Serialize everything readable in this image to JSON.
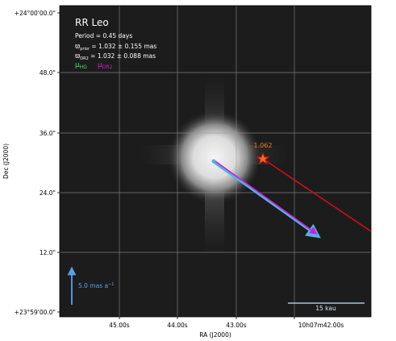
{
  "object": {
    "name": "RR Leo",
    "period_line": "Period =    0.45 days",
    "plx_prior_sym": "ϖ",
    "plx_prior_sub": "prior",
    "plx_prior_rest": " = 1.032 ± 0.155 mas",
    "plx_dr2_sym": "ϖ",
    "plx_dr2_sub": "DR2",
    "plx_dr2_rest": " = 1.032 ± 0.088 mas"
  },
  "legend": {
    "hg_sym": "μ",
    "hg_sub": "HG",
    "dr2_sym": "μ",
    "dr2_sub": "DR2"
  },
  "axes": {
    "xlabel": "RA (J2000)",
    "ylabel": "Dec (J2000)",
    "xticks": [
      "45.00s",
      "44.00s",
      "43.00s",
      "10h07m42.00s"
    ],
    "yticks": [
      "+24°00'00.0\"",
      "48.0\"",
      "36.0\"",
      "24.0\"",
      "12.0\"",
      "+23°59'00.0\""
    ]
  },
  "annotations": {
    "ruwe_label": "1.062",
    "scale_arrow_label": "5.0 mas a",
    "scale_arrow_exp": "−1",
    "scalebar_label": "15 kau"
  },
  "colors": {
    "background_image": "#1c1c1c",
    "grid": "#9a9a9a",
    "text": "#ffffff",
    "hg": "#3be07a",
    "dr2": "#d01cd8",
    "cyan_arrow": "#4fb3e6",
    "red_line": "#d01010",
    "star_fill": "#f46d15",
    "star_edge": "#d81111",
    "ruwe_text": "#f47a1a",
    "scale_arrow": "#5aa0ea",
    "scalebar": "#cfe4f7"
  }
}
